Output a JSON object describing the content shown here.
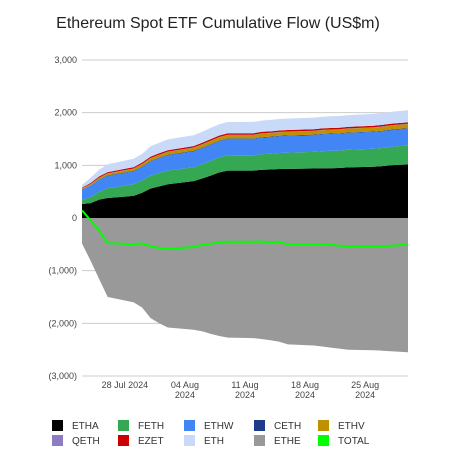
{
  "chart_data": {
    "type": "area",
    "title": "Ethereum Spot ETF Cumulative Flow (US$m)",
    "xlabel": "",
    "ylabel": "",
    "ylim": [
      -3000,
      3000
    ],
    "y_ticks": [
      3000,
      2000,
      1000,
      0,
      -1000,
      -2000,
      -3000
    ],
    "y_tick_labels": [
      "3,000",
      "2,000",
      "1,000",
      "0",
      "(1,000)",
      "(2,000)",
      "(3,000)"
    ],
    "x_tick_labels": [
      [
        "28 Jul 2024"
      ],
      [
        "04 Aug",
        "2024"
      ],
      [
        "11 Aug",
        "2024"
      ],
      [
        "18 Aug",
        "2024"
      ],
      [
        "25 Aug",
        "2024"
      ]
    ],
    "x_tick_dates": [
      "2024-07-28",
      "2024-08-04",
      "2024-08-11",
      "2024-08-18",
      "2024-08-25"
    ],
    "x": [
      "2024-07-23",
      "2024-07-24",
      "2024-07-25",
      "2024-07-26",
      "2024-07-29",
      "2024-07-30",
      "2024-07-31",
      "2024-08-01",
      "2024-08-02",
      "2024-08-05",
      "2024-08-06",
      "2024-08-07",
      "2024-08-08",
      "2024-08-09",
      "2024-08-12",
      "2024-08-13",
      "2024-08-14",
      "2024-08-15",
      "2024-08-16",
      "2024-08-19",
      "2024-08-20",
      "2024-08-21",
      "2024-08-22",
      "2024-08-23",
      "2024-08-26",
      "2024-08-27",
      "2024-08-28",
      "2024-08-29",
      "2024-08-30"
    ],
    "legend_position": "bottom",
    "grid": true,
    "series": [
      {
        "name": "ETHA",
        "color": "#000000",
        "values": [
          266,
          283,
          350,
          380,
          420,
          478,
          560,
          600,
          640,
          700,
          750,
          805,
          865,
          900,
          900,
          918,
          920,
          930,
          932,
          940,
          944,
          946,
          950,
          960,
          975,
          985,
          1000,
          1010,
          1015
        ]
      },
      {
        "name": "FETH",
        "color": "#34a853",
        "values": [
          71,
          114,
          150,
          185,
          220,
          235,
          245,
          255,
          260,
          265,
          270,
          280,
          285,
          290,
          290,
          295,
          300,
          305,
          310,
          315,
          325,
          330,
          330,
          335,
          340,
          345,
          350,
          355,
          360
        ]
      },
      {
        "name": "ETHW",
        "color": "#4285f4",
        "values": [
          204,
          215,
          225,
          235,
          245,
          255,
          270,
          280,
          290,
          300,
          305,
          308,
          310,
          312,
          312,
          314,
          315,
          316,
          317,
          318,
          318,
          318,
          318,
          318,
          318,
          318,
          318,
          318,
          318
        ]
      },
      {
        "name": "CETH",
        "color": "#1f3c88",
        "values": [
          5,
          5,
          8,
          8,
          10,
          10,
          10,
          10,
          10,
          10,
          10,
          10,
          10,
          10,
          10,
          10,
          10,
          10,
          10,
          10,
          10,
          10,
          10,
          10,
          10,
          10,
          10,
          10,
          10
        ]
      },
      {
        "name": "ETHV",
        "color": "#bf9000",
        "values": [
          15,
          25,
          30,
          35,
          40,
          45,
          50,
          52,
          55,
          58,
          60,
          62,
          63,
          64,
          65,
          66,
          67,
          68,
          69,
          70,
          71,
          72,
          73,
          74,
          75,
          76,
          77,
          78,
          80
        ]
      },
      {
        "name": "QETH",
        "color": "#8e7cc3",
        "values": [
          2,
          3,
          4,
          5,
          5,
          5,
          5,
          5,
          5,
          5,
          5,
          5,
          5,
          5,
          5,
          5,
          5,
          5,
          5,
          5,
          5,
          5,
          5,
          5,
          5,
          5,
          5,
          5,
          5
        ]
      },
      {
        "name": "EZET",
        "color": "#cc0000",
        "values": [
          15,
          20,
          22,
          24,
          25,
          25,
          26,
          26,
          27,
          27,
          28,
          28,
          28,
          28,
          28,
          28,
          28,
          28,
          28,
          28,
          28,
          28,
          28,
          28,
          28,
          28,
          28,
          28,
          28
        ]
      },
      {
        "name": "ETH",
        "color": "#c9daf8",
        "values": [
          50,
          100,
          130,
          150,
          160,
          165,
          200,
          200,
          205,
          205,
          210,
          212,
          213,
          214,
          215,
          216,
          217,
          218,
          219,
          220,
          221,
          222,
          223,
          224,
          225,
          226,
          227,
          228,
          230
        ]
      },
      {
        "name": "ETHE",
        "color": "#999999",
        "values": [
          -484,
          -811,
          -1160,
          -1500,
          -1600,
          -1700,
          -1900,
          -2000,
          -2080,
          -2120,
          -2150,
          -2200,
          -2240,
          -2270,
          -2280,
          -2300,
          -2320,
          -2350,
          -2400,
          -2420,
          -2440,
          -2460,
          -2480,
          -2500,
          -2510,
          -2520,
          -2530,
          -2540,
          -2550
        ]
      },
      {
        "name": "TOTAL",
        "color": "#00ff00",
        "type": "line",
        "values": [
          144,
          -46,
          -241,
          -478,
          -495,
          -482,
          -534,
          -572,
          -588,
          -550,
          -512,
          -490,
          -463,
          -450,
          -450,
          -448,
          -461,
          -452,
          -501,
          -496,
          -498,
          -507,
          -528,
          -537,
          -534,
          -532,
          -525,
          -517,
          -494
        ]
      }
    ]
  }
}
